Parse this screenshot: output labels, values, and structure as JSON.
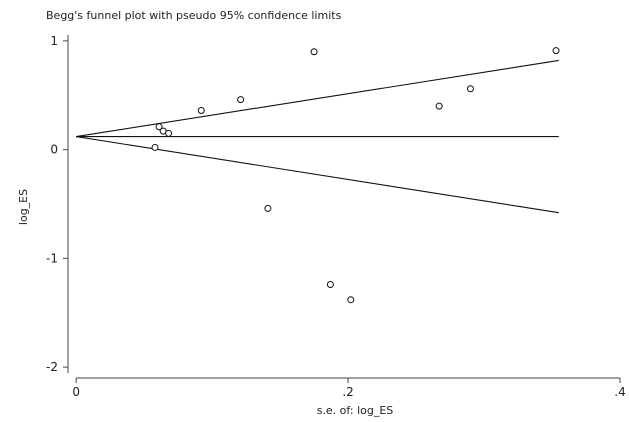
{
  "chart_data": {
    "type": "scatter",
    "title": "Begg's funnel plot with pseudo 95% confidence limits",
    "xlabel": "s.e. of: log_ES",
    "ylabel": "log_ES",
    "xlim": [
      -0.006,
      0.4
    ],
    "ylim": [
      -2.1,
      1.1
    ],
    "x_ticks": [
      {
        "value": 0,
        "label": "0"
      },
      {
        "value": 0.2,
        "label": ".2"
      },
      {
        "value": 0.4,
        "label": ".4"
      }
    ],
    "y_ticks": [
      {
        "value": 1,
        "label": "1"
      },
      {
        "value": 0,
        "label": "0"
      },
      {
        "value": -1,
        "label": "-1"
      },
      {
        "value": -2,
        "label": "-2"
      }
    ],
    "grid": false,
    "pooled_estimate": 0.12,
    "lines": {
      "x_range": [
        0,
        0.355
      ],
      "pooled_y": 0.12,
      "upper_y": [
        0.12,
        0.82
      ],
      "lower_y": [
        0.12,
        -0.58
      ]
    },
    "points": [
      {
        "x": 0.058,
        "y": 0.02
      },
      {
        "x": 0.061,
        "y": 0.21
      },
      {
        "x": 0.064,
        "y": 0.17
      },
      {
        "x": 0.068,
        "y": 0.15
      },
      {
        "x": 0.092,
        "y": 0.36
      },
      {
        "x": 0.121,
        "y": 0.46
      },
      {
        "x": 0.141,
        "y": -0.54
      },
      {
        "x": 0.175,
        "y": 0.9
      },
      {
        "x": 0.187,
        "y": -1.24
      },
      {
        "x": 0.202,
        "y": -1.38
      },
      {
        "x": 0.267,
        "y": 0.4
      },
      {
        "x": 0.29,
        "y": 0.56
      },
      {
        "x": 0.353,
        "y": 0.91
      }
    ]
  }
}
